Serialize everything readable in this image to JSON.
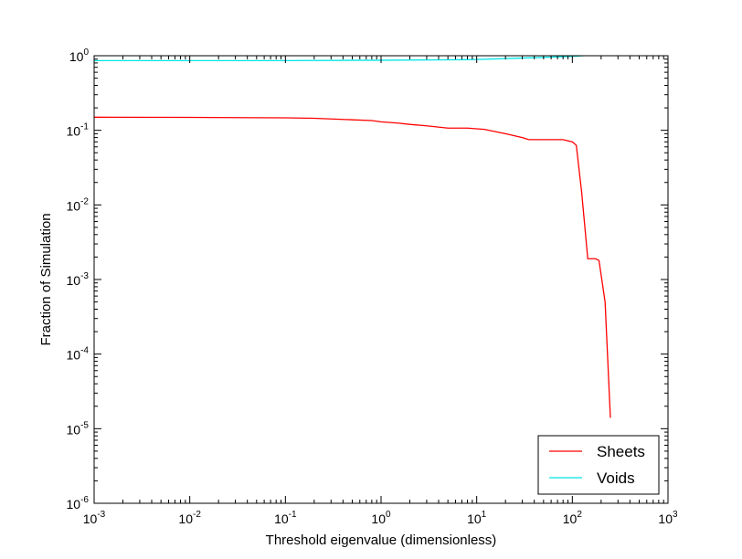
{
  "chart_data": {
    "type": "line",
    "title": "",
    "xlabel": "Threshold eigenvalue (dimensionless)",
    "ylabel": "Fraction of Simulation",
    "xscale": "log",
    "yscale": "log",
    "xlim": [
      0.001,
      1000
    ],
    "ylim": [
      1e-06,
      1
    ],
    "x_ticks": [
      {
        "value": 0.001,
        "base": "10",
        "exp": "-3"
      },
      {
        "value": 0.01,
        "base": "10",
        "exp": "-2"
      },
      {
        "value": 0.1,
        "base": "10",
        "exp": "-1"
      },
      {
        "value": 1,
        "base": "10",
        "exp": "0"
      },
      {
        "value": 10,
        "base": "10",
        "exp": "1"
      },
      {
        "value": 100,
        "base": "10",
        "exp": "2"
      },
      {
        "value": 1000,
        "base": "10",
        "exp": "3"
      }
    ],
    "y_ticks": [
      {
        "value": 1e-06,
        "base": "10",
        "exp": "-6"
      },
      {
        "value": 1e-05,
        "base": "10",
        "exp": "-5"
      },
      {
        "value": 0.0001,
        "base": "10",
        "exp": "-4"
      },
      {
        "value": 0.001,
        "base": "10",
        "exp": "-3"
      },
      {
        "value": 0.01,
        "base": "10",
        "exp": "-2"
      },
      {
        "value": 0.1,
        "base": "10",
        "exp": "-1"
      },
      {
        "value": 1,
        "base": "10",
        "exp": "0"
      }
    ],
    "grid": false,
    "legend_position": "lower-right",
    "series": [
      {
        "name": "Sheets",
        "color": "#ff0000",
        "points": [
          [
            0.001,
            0.15
          ],
          [
            0.01,
            0.149
          ],
          [
            0.1,
            0.147
          ],
          [
            0.2,
            0.145
          ],
          [
            0.4,
            0.14
          ],
          [
            0.8,
            0.135
          ],
          [
            1.0,
            0.13
          ],
          [
            1.5,
            0.125
          ],
          [
            2.0,
            0.12
          ],
          [
            3.0,
            0.115
          ],
          [
            5.0,
            0.107
          ],
          [
            8.0,
            0.107
          ],
          [
            12.0,
            0.103
          ],
          [
            20.0,
            0.09
          ],
          [
            30.0,
            0.08
          ],
          [
            35.0,
            0.075
          ],
          [
            50.0,
            0.075
          ],
          [
            80.0,
            0.075
          ],
          [
            100.0,
            0.07
          ],
          [
            110.0,
            0.063
          ],
          [
            125.0,
            0.015
          ],
          [
            145.0,
            0.0019
          ],
          [
            175.0,
            0.0019
          ],
          [
            190.0,
            0.0018
          ],
          [
            220.0,
            0.0005
          ],
          [
            250.0,
            1.4e-05
          ]
        ]
      },
      {
        "name": "Voids",
        "color": "#00e5e5",
        "points": [
          [
            0.001,
            0.86
          ],
          [
            0.01,
            0.86
          ],
          [
            0.1,
            0.86
          ],
          [
            1.0,
            0.87
          ],
          [
            5.0,
            0.88
          ],
          [
            10.0,
            0.89
          ],
          [
            30.0,
            0.93
          ],
          [
            100.0,
            0.98
          ],
          [
            130.0,
            1.0
          ]
        ]
      }
    ]
  }
}
